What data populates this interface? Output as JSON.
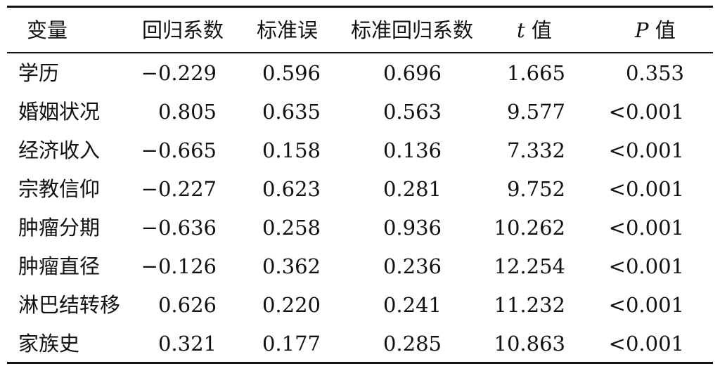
{
  "table": {
    "headers": {
      "variable": "变量",
      "coef": "回归系数",
      "se": "标准误",
      "std_coef": "标准回归系数",
      "t_letter": "t",
      "t_suffix": " 值",
      "p_letter": "P",
      "p_suffix": " 值"
    },
    "rows": [
      {
        "variable": "学历",
        "coef": "−0.229",
        "se": "0.596",
        "std_coef": "0.696",
        "t": "1.665",
        "p": "0.353"
      },
      {
        "variable": "婚姻状况",
        "coef": "0.805",
        "se": "0.635",
        "std_coef": "0.563",
        "t": "9.577",
        "p": "<0.001"
      },
      {
        "variable": "经济收入",
        "coef": "−0.665",
        "se": "0.158",
        "std_coef": "0.136",
        "t": "7.332",
        "p": "<0.001"
      },
      {
        "variable": "宗教信仰",
        "coef": "−0.227",
        "se": "0.623",
        "std_coef": "0.281",
        "t": "9.752",
        "p": "<0.001"
      },
      {
        "variable": "肿瘤分期",
        "coef": "−0.636",
        "se": "0.258",
        "std_coef": "0.936",
        "t": "10.262",
        "p": "<0.001"
      },
      {
        "variable": "肿瘤直径",
        "coef": "−0.126",
        "se": "0.362",
        "std_coef": "0.236",
        "t": "12.254",
        "p": "<0.001"
      },
      {
        "variable": "淋巴结转移",
        "coef": "0.626",
        "se": "0.220",
        "std_coef": "0.241",
        "t": "11.232",
        "p": "<0.001"
      },
      {
        "variable": "家族史",
        "coef": "0.321",
        "se": "0.177",
        "std_coef": "0.285",
        "t": "10.863",
        "p": "<0.001"
      }
    ]
  }
}
